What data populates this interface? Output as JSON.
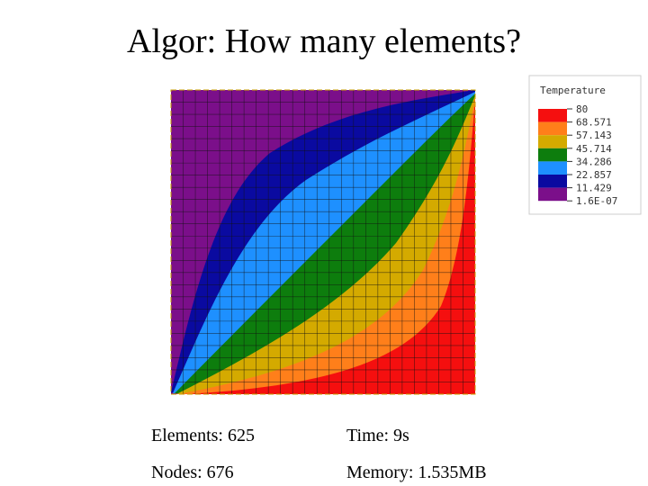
{
  "title": "Algor: How many elements?",
  "legend": {
    "title": "Temperature",
    "labels": [
      "80",
      "68.571",
      "57.143",
      "45.714",
      "34.286",
      "22.857",
      "11.429",
      "1.6E-07"
    ]
  },
  "stats": [
    [
      "Elements: 625",
      "Time: 9s"
    ],
    [
      "Nodes: 676",
      "Memory: 1.535MB"
    ]
  ]
}
